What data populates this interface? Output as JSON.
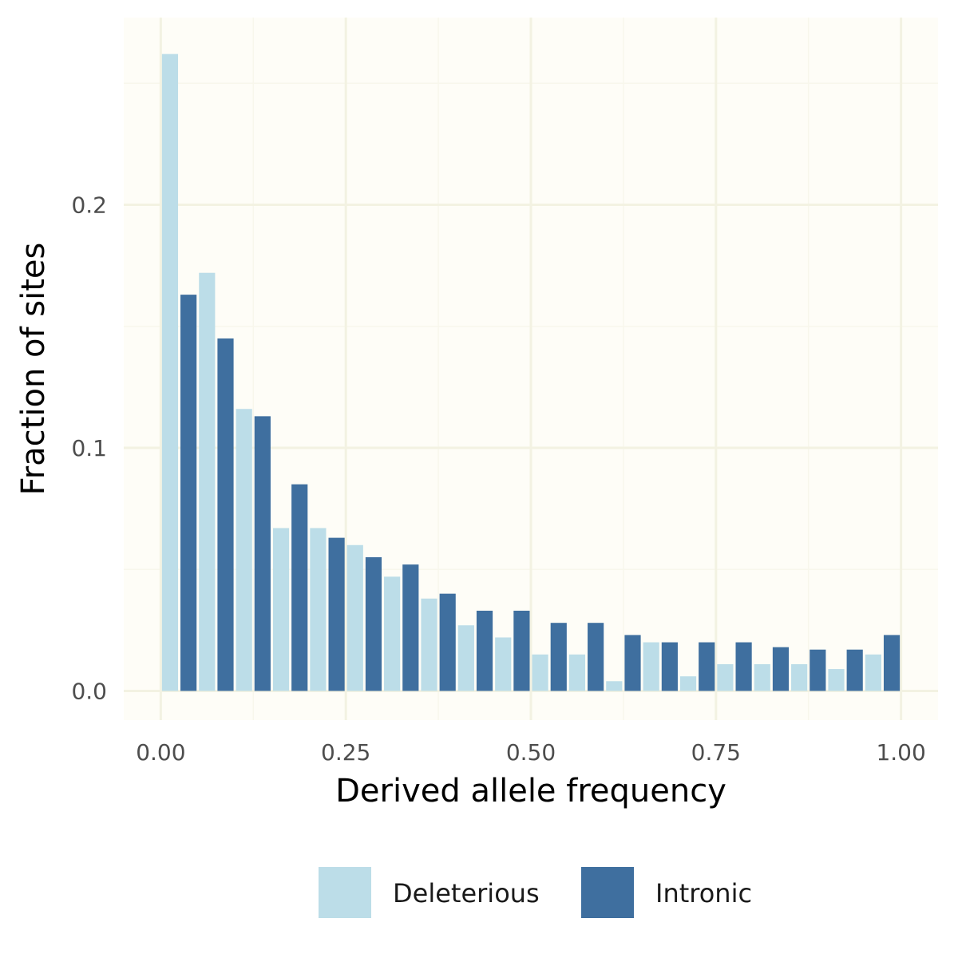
{
  "chart_data": {
    "type": "bar",
    "title": "",
    "xlabel": "Derived allele frequency",
    "ylabel": "Fraction of sites",
    "xlim": [
      -0.05,
      1.05
    ],
    "ylim": [
      -0.012,
      0.277
    ],
    "x_ticks": [
      0.0,
      0.25,
      0.5,
      0.75,
      1.0
    ],
    "x_tick_labels": [
      "0.00",
      "0.25",
      "0.50",
      "0.75",
      "1.00"
    ],
    "y_ticks": [
      0.0,
      0.1,
      0.2
    ],
    "y_tick_labels": [
      "0.0",
      "0.1",
      "0.2"
    ],
    "grid": true,
    "legend_position": "bottom",
    "bin_width": 0.05,
    "bins": [
      0.025,
      0.075,
      0.125,
      0.175,
      0.225,
      0.275,
      0.325,
      0.375,
      0.425,
      0.475,
      0.525,
      0.575,
      0.625,
      0.675,
      0.725,
      0.775,
      0.825,
      0.875,
      0.925,
      0.975
    ],
    "series": [
      {
        "name": "Deleterious",
        "color": "#bcdde8",
        "values": [
          0.262,
          0.172,
          0.116,
          0.067,
          0.067,
          0.06,
          0.047,
          0.038,
          0.027,
          0.022,
          0.015,
          0.015,
          0.004,
          0.02,
          0.006,
          0.011,
          0.011,
          0.011,
          0.009,
          0.015
        ]
      },
      {
        "name": "Intronic",
        "color": "#3f6f9f",
        "values": [
          0.163,
          0.145,
          0.113,
          0.085,
          0.063,
          0.055,
          0.052,
          0.04,
          0.033,
          0.033,
          0.028,
          0.028,
          0.023,
          0.02,
          0.02,
          0.02,
          0.018,
          0.017,
          0.017,
          0.023
        ]
      }
    ],
    "colors": {
      "panel_background": "#fefdf7",
      "grid_major": "#f3f2e2",
      "grid_minor": "#f8f7ec"
    }
  }
}
